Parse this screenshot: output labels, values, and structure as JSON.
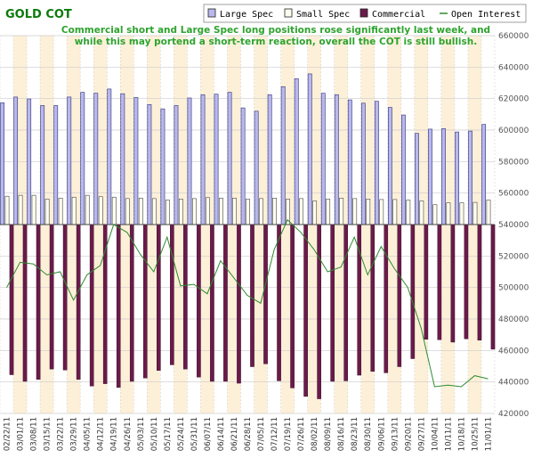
{
  "chart_data": {
    "type": "bar",
    "title": "GOLD COT",
    "annotation": [
      "Commercial short and Large Spec long positions rose significantly last week, and",
      "while this may portend a short-term reaction, overall the COT is still bullish."
    ],
    "legend": {
      "placement": "top-right",
      "entries": [
        {
          "name": "Large Spec",
          "key": "large_spec"
        },
        {
          "name": "Small Spec",
          "key": "small_spec"
        },
        {
          "name": "Commercial",
          "key": "commercial"
        },
        {
          "name": "Open Interest",
          "key": "open_interest"
        }
      ]
    },
    "colors": {
      "large_spec": "#b8b8ec",
      "small_spec": "#fffff0",
      "commercial": "#6b1a4a",
      "open_interest": "#2e8b2e",
      "band": "#fdf0d8",
      "grid": "#cccccc"
    },
    "categories": [
      "02/22/11",
      "03/01/11",
      "03/08/11",
      "03/15/11",
      "03/22/11",
      "03/29/11",
      "04/05/11",
      "04/12/11",
      "04/19/11",
      "04/26/11",
      "05/03/11",
      "05/10/11",
      "05/17/11",
      "05/24/11",
      "05/31/11",
      "06/07/11",
      "06/14/11",
      "06/21/11",
      "06/28/11",
      "07/05/11",
      "07/12/11",
      "07/19/11",
      "07/26/11",
      "08/02/11",
      "08/09/11",
      "08/16/11",
      "08/23/11",
      "08/30/11",
      "09/06/11",
      "09/13/11",
      "09/20/11",
      "09/27/11",
      "10/04/11",
      "10/11/11",
      "10/18/11",
      "10/25/11",
      "11/01/11"
    ],
    "xtick_labels": [
      "02/22/11",
      "03/01/11",
      "03/08/11",
      "03/15/11",
      "03/22/11",
      "03/29/11",
      "04/05/11",
      "04/12/11",
      "04/19/11",
      "04/26/11",
      "05/03/11",
      "05/10/11",
      "05/17/11",
      "05/24/11",
      "05/31/11",
      "06/07/11",
      "06/14/11",
      "06/21/11",
      "06/28/11",
      "07/05/11",
      "07/12/11",
      "07/19/11",
      "07/26/11",
      "08/02/11",
      "08/09/11",
      "08/16/11",
      "08/23/11",
      "08/30/11",
      "09/06/11",
      "09/13/11",
      "09/20/11",
      "09/27/11",
      "10/04/11",
      "10/11/11",
      "10/18/11",
      "10/25/11",
      "11/01/11"
    ],
    "series": [
      {
        "name": "Large Spec",
        "values": [
          258000,
          270000,
          266000,
          252000,
          252000,
          270000,
          280000,
          278000,
          287000,
          277000,
          269000,
          254000,
          245000,
          252000,
          268000,
          275000,
          276000,
          280000,
          247000,
          240000,
          275000,
          292000,
          309000,
          319000,
          278000,
          275000,
          264000,
          257000,
          261000,
          248000,
          232000,
          193000,
          202000,
          203000,
          196000,
          198000,
          212000
        ]
      },
      {
        "name": "Small Spec",
        "values": [
          60000,
          62000,
          62000,
          54000,
          56000,
          58000,
          62000,
          59000,
          58000,
          55000,
          56000,
          55000,
          52000,
          54000,
          55000,
          57000,
          56000,
          56000,
          54000,
          55000,
          56000,
          54000,
          55000,
          50000,
          54000,
          56000,
          55000,
          54000,
          53000,
          53000,
          52000,
          50000,
          42000,
          46000,
          46000,
          47000,
          52000
        ]
      },
      {
        "name": "Commercial",
        "values": [
          -318000,
          -332000,
          -328000,
          -306000,
          -308000,
          -328000,
          -342000,
          -337000,
          -345000,
          -332000,
          -325000,
          -309000,
          -297000,
          -306000,
          -323000,
          -332000,
          -332000,
          -336000,
          -301000,
          -295000,
          -331000,
          -346000,
          -364000,
          -369000,
          -332000,
          -331000,
          -319000,
          -311000,
          -314000,
          -301000,
          -284000,
          -243000,
          -244000,
          -249000,
          -242000,
          -245000,
          -264000
        ]
      },
      {
        "name": "Open Interest",
        "values": [
          500000,
          516000,
          515000,
          508000,
          510000,
          492000,
          508000,
          514000,
          540000,
          535000,
          521000,
          510000,
          532000,
          501000,
          502000,
          496000,
          517000,
          506000,
          495000,
          490000,
          524000,
          543000,
          535000,
          524000,
          510000,
          513000,
          532000,
          508000,
          526000,
          512000,
          500000,
          474000,
          437000,
          438000,
          437000,
          444000,
          442000
        ]
      }
    ],
    "y_left": {
      "min": -400000,
      "max": 400000
    },
    "y_right": {
      "min": 420000,
      "max": 660000,
      "step": 20000,
      "tick_labels": [
        "420000",
        "440000",
        "460000",
        "480000",
        "500000",
        "520000",
        "540000",
        "560000",
        "580000",
        "600000",
        "620000",
        "640000",
        "660000"
      ]
    },
    "grid": true
  }
}
